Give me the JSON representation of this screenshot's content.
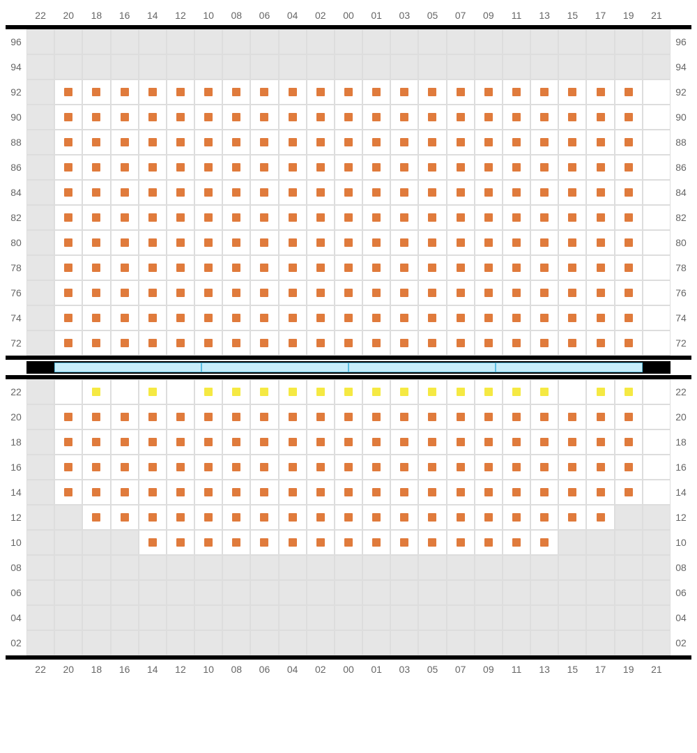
{
  "columns": [
    "22",
    "20",
    "18",
    "16",
    "14",
    "12",
    "10",
    "08",
    "06",
    "04",
    "02",
    "00",
    "01",
    "03",
    "05",
    "07",
    "09",
    "11",
    "13",
    "15",
    "17",
    "19",
    "21"
  ],
  "colors": {
    "unavailable_bg": "#e6e6e6",
    "available_bg": "#ffffff",
    "grid_line": "#dddddd",
    "seat_orange": "#e07b3c",
    "seat_yellow": "#f5e943",
    "divider_fill": "#c7ecf9",
    "divider_border": "#5bbde0",
    "label_color": "#666666",
    "block_border": "#000000"
  },
  "divider_segments": 4,
  "top_block": {
    "rows": [
      {
        "label": "96",
        "cells": "UUUUUUUUUUUUUUUUUUUUUUU"
      },
      {
        "label": "94",
        "cells": "UUUUUUUUUUUUUUUUUUUUUUU"
      },
      {
        "label": "92",
        "cells": "UOOOOOOOOOOOOOOOOOOOOOA"
      },
      {
        "label": "90",
        "cells": "UOOOOOOOOOOOOOOOOOOOOOA"
      },
      {
        "label": "88",
        "cells": "UOOOOOOOOOOOOOOOOOOOOOA"
      },
      {
        "label": "86",
        "cells": "UOOOOOOOOOOOOOOOOOOOOOA"
      },
      {
        "label": "84",
        "cells": "UOOOOOOOOOOOOOOOOOOOOOA"
      },
      {
        "label": "82",
        "cells": "UOOOOOOOOOOOOOOOOOOOOOA"
      },
      {
        "label": "80",
        "cells": "UOOOOOOOOOOOOOOOOOOOOOA"
      },
      {
        "label": "78",
        "cells": "UOOOOOOOOOOOOOOOOOOOOOA"
      },
      {
        "label": "76",
        "cells": "UOOOOOOOOOOOOOOOOOOOOOA"
      },
      {
        "label": "74",
        "cells": "UOOOOOOOOOOOOOOOOOOOOOA"
      },
      {
        "label": "72",
        "cells": "UOOOOOOOOOOOOOOOOOOOOOA"
      }
    ]
  },
  "bottom_block": {
    "rows": [
      {
        "label": "22",
        "cells": "UAYAYAYYYYYYYYYYYYYAYYA"
      },
      {
        "label": "20",
        "cells": "UOOOOOOOOOOOOOOOOOOOOOA"
      },
      {
        "label": "18",
        "cells": "UOOOOOOOOOOOOOOOOOOOOOA"
      },
      {
        "label": "16",
        "cells": "UOOOOOOOOOOOOOOOOOOOOOA"
      },
      {
        "label": "14",
        "cells": "UOOOOOOOOOOOOOOOOOOOOOA"
      },
      {
        "label": "12",
        "cells": "UUOOOOOOOOOOOOOOOOOOOUU"
      },
      {
        "label": "10",
        "cells": "UUUUOOOOOOOOOOOOOOOUUUU"
      },
      {
        "label": "08",
        "cells": "UUUUUUUUUUUUUUUUUUUUUUU"
      },
      {
        "label": "06",
        "cells": "UUUUUUUUUUUUUUUUUUUUUUU"
      },
      {
        "label": "04",
        "cells": "UUUUUUUUUUUUUUUUUUUUUUU"
      },
      {
        "label": "02",
        "cells": "UUUUUUUUUUUUUUUUUUUUUUU"
      }
    ]
  },
  "legend": {
    "U": {
      "type": "unavailable",
      "seat": null
    },
    "A": {
      "type": "available",
      "seat": null
    },
    "O": {
      "type": "available",
      "seat": "orange"
    },
    "Y": {
      "type": "available",
      "seat": "yellow"
    }
  }
}
